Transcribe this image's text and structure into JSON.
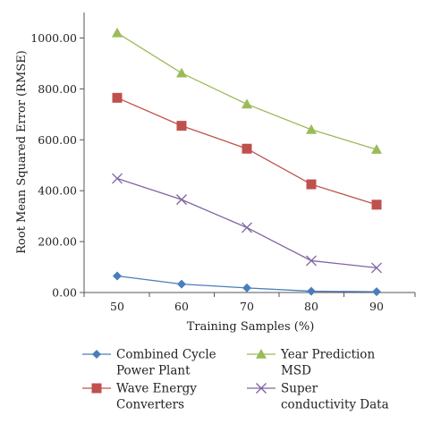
{
  "chart_data": {
    "type": "line",
    "categories": [
      "50",
      "60",
      "70",
      "80",
      "90"
    ],
    "xlabel": "Training Samples (%)",
    "ylabel": "Root Mean Squared Error (RMSE)",
    "ylim": [
      0,
      1100
    ],
    "yticks": [
      0,
      200,
      400,
      600,
      800,
      1000
    ],
    "ytick_labels": [
      "0.00",
      "200.00",
      "400.00",
      "600.00",
      "800.00",
      "1000.00"
    ],
    "grid": false,
    "legend_position": "bottom",
    "series": [
      {
        "name": "Combined Cycle Power Plant",
        "legend_lines": [
          "Combined Cycle",
          "Power Plant"
        ],
        "marker": "diamond",
        "color": "#4a7ebb",
        "values": [
          65,
          33,
          18,
          5,
          3
        ]
      },
      {
        "name": "Year Prediction MSD",
        "legend_lines": [
          "Year Prediction",
          "MSD"
        ],
        "marker": "triangle",
        "color": "#9bbb59",
        "values": [
          1020,
          862,
          740,
          640,
          562
        ]
      },
      {
        "name": "Wave Energy Converters",
        "legend_lines": [
          "Wave Energy",
          "Converters"
        ],
        "marker": "square",
        "color": "#c0504d",
        "values": [
          765,
          655,
          565,
          425,
          345
        ]
      },
      {
        "name": "Super conductivity Data",
        "legend_lines": [
          "Super",
          "conductivity Data"
        ],
        "marker": "x",
        "color": "#8064a2",
        "values": [
          448,
          365,
          255,
          125,
          97
        ]
      }
    ]
  }
}
